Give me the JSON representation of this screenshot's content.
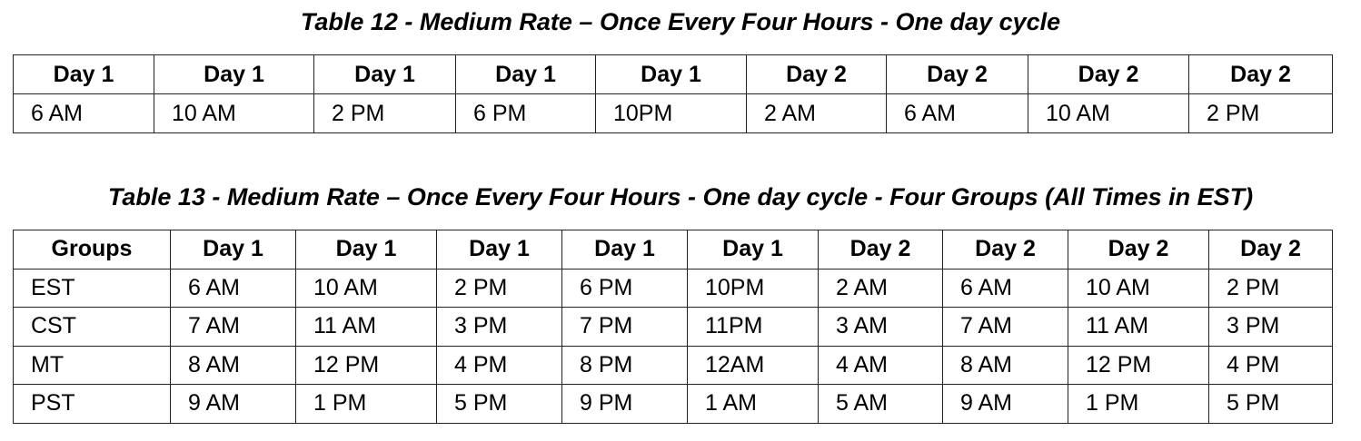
{
  "table12": {
    "caption": "Table 12 - Medium Rate – Once Every Four Hours - One day cycle",
    "headers": [
      "Day 1",
      "Day 1",
      "Day 1",
      "Day 1",
      "Day 1",
      "Day 2",
      "Day 2",
      "Day 2",
      "Day 2"
    ],
    "row": [
      "6 AM",
      "10 AM",
      "2 PM",
      "6 PM",
      "10PM",
      "2 AM",
      "6 AM",
      "10 AM",
      "2 PM"
    ]
  },
  "table13": {
    "caption": "Table 13 - Medium Rate – Once Every Four Hours - One day cycle - Four Groups (All Times in EST)",
    "headers": [
      "Groups",
      "Day 1",
      "Day 1",
      "Day 1",
      "Day 1",
      "Day 1",
      "Day 2",
      "Day 2",
      "Day 2",
      "Day 2"
    ],
    "rows": [
      [
        "EST",
        "6 AM",
        "10 AM",
        "2 PM",
        "6 PM",
        "10PM",
        "2 AM",
        "6 AM",
        "10 AM",
        "2 PM"
      ],
      [
        "CST",
        "7 AM",
        "11 AM",
        "3 PM",
        "7 PM",
        "11PM",
        "3 AM",
        "7 AM",
        "11 AM",
        "3 PM"
      ],
      [
        "MT",
        "8 AM",
        "12 PM",
        "4 PM",
        "8 PM",
        "12AM",
        "4 AM",
        "8 AM",
        "12 PM",
        "4 PM"
      ],
      [
        "PST",
        "9 AM",
        "1 PM",
        "5 PM",
        "9 PM",
        "1 AM",
        "5 AM",
        "9 AM",
        "1 PM",
        "5 PM"
      ]
    ]
  }
}
